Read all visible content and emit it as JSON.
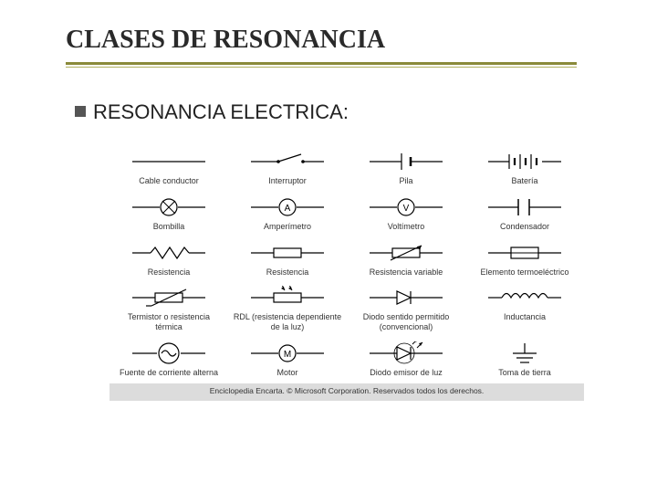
{
  "title": "CLASES DE RESONANCIA",
  "subtitle": "RESONANCIA ELECTRICA:",
  "footer": "Enciclopedia Encarta. © Microsoft Corporation. Reservados todos los derechos.",
  "rows": [
    [
      {
        "label": "Cable conductor",
        "type": "wire"
      },
      {
        "label": "Interruptor",
        "type": "switch"
      },
      {
        "label": "Pila",
        "type": "cell"
      },
      {
        "label": "Batería",
        "type": "battery"
      }
    ],
    [
      {
        "label": "Bombilla",
        "type": "lamp"
      },
      {
        "label": "Amperímetro",
        "type": "ammeter"
      },
      {
        "label": "Voltímetro",
        "type": "voltmeter"
      },
      {
        "label": "Condensador",
        "type": "capacitor"
      }
    ],
    [
      {
        "label": "Resistencia",
        "type": "resistor_zz"
      },
      {
        "label": "Resistencia",
        "type": "resistor_box"
      },
      {
        "label": "Resistencia variable",
        "type": "var_resistor"
      },
      {
        "label": "Elemento termoeléctrico",
        "type": "thermo"
      }
    ],
    [
      {
        "label": "Termistor o resistencia térmica",
        "type": "thermistor"
      },
      {
        "label": "RDL (resistencia dependiente de la luz)",
        "type": "ldr"
      },
      {
        "label": "Diodo sentido permitido (convencional)",
        "type": "diode"
      },
      {
        "label": "Inductancia",
        "type": "inductor"
      }
    ],
    [
      {
        "label": "Fuente de corriente alterna",
        "type": "ac"
      },
      {
        "label": "Motor",
        "type": "motor"
      },
      {
        "label": "Diodo emisor de luz",
        "type": "led"
      },
      {
        "label": "Toma de tierra",
        "type": "ground"
      }
    ]
  ],
  "colors": {
    "stroke": "#000000",
    "title": "#2a2a2a",
    "underline": "#8a8a3a"
  }
}
